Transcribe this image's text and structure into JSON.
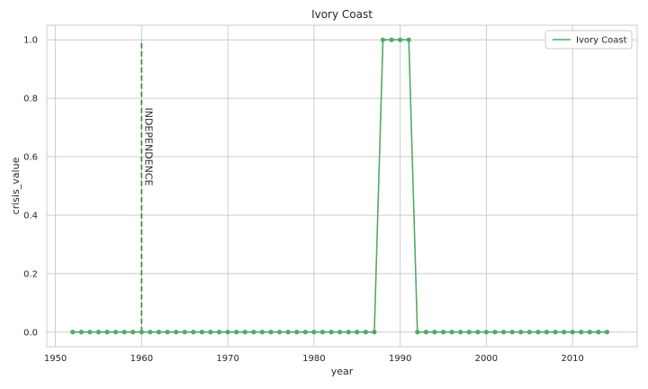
{
  "chart_data": {
    "type": "line",
    "title": "Ivory Coast",
    "xlabel": "year",
    "ylabel": "crisis_value",
    "xlim": [
      1949,
      2017.5
    ],
    "ylim": [
      -0.05,
      1.05
    ],
    "xticks": [
      1950,
      1960,
      1970,
      1980,
      1990,
      2000,
      2010
    ],
    "yticks": [
      0.0,
      0.2,
      0.4,
      0.6,
      0.8,
      1.0
    ],
    "grid": true,
    "legend_position": "top-right",
    "series": [
      {
        "name": "Ivory Coast",
        "color": "#55a868",
        "x": [
          1952,
          1953,
          1954,
          1955,
          1956,
          1957,
          1958,
          1959,
          1960,
          1961,
          1962,
          1963,
          1964,
          1965,
          1966,
          1967,
          1968,
          1969,
          1970,
          1971,
          1972,
          1973,
          1974,
          1975,
          1976,
          1977,
          1978,
          1979,
          1980,
          1981,
          1982,
          1983,
          1984,
          1985,
          1986,
          1987,
          1988,
          1989,
          1990,
          1991,
          1992,
          1993,
          1994,
          1995,
          1996,
          1997,
          1998,
          1999,
          2000,
          2001,
          2002,
          2003,
          2004,
          2005,
          2006,
          2007,
          2008,
          2009,
          2010,
          2011,
          2012,
          2013,
          2014
        ],
        "y": [
          0,
          0,
          0,
          0,
          0,
          0,
          0,
          0,
          0,
          0,
          0,
          0,
          0,
          0,
          0,
          0,
          0,
          0,
          0,
          0,
          0,
          0,
          0,
          0,
          0,
          0,
          0,
          0,
          0,
          0,
          0,
          0,
          0,
          0,
          0,
          0,
          1,
          1,
          1,
          1,
          0,
          0,
          0,
          0,
          0,
          0,
          0,
          0,
          0,
          0,
          0,
          0,
          0,
          0,
          0,
          0,
          0,
          0,
          0,
          0,
          0,
          0,
          0
        ]
      }
    ],
    "annotations": [
      {
        "type": "vline",
        "x": 1960,
        "y_from": 0,
        "y_to": 1,
        "color": "#2e8b2e",
        "style": "dashed",
        "label": "INDEPENDENCE",
        "label_y": 0.5
      }
    ]
  }
}
